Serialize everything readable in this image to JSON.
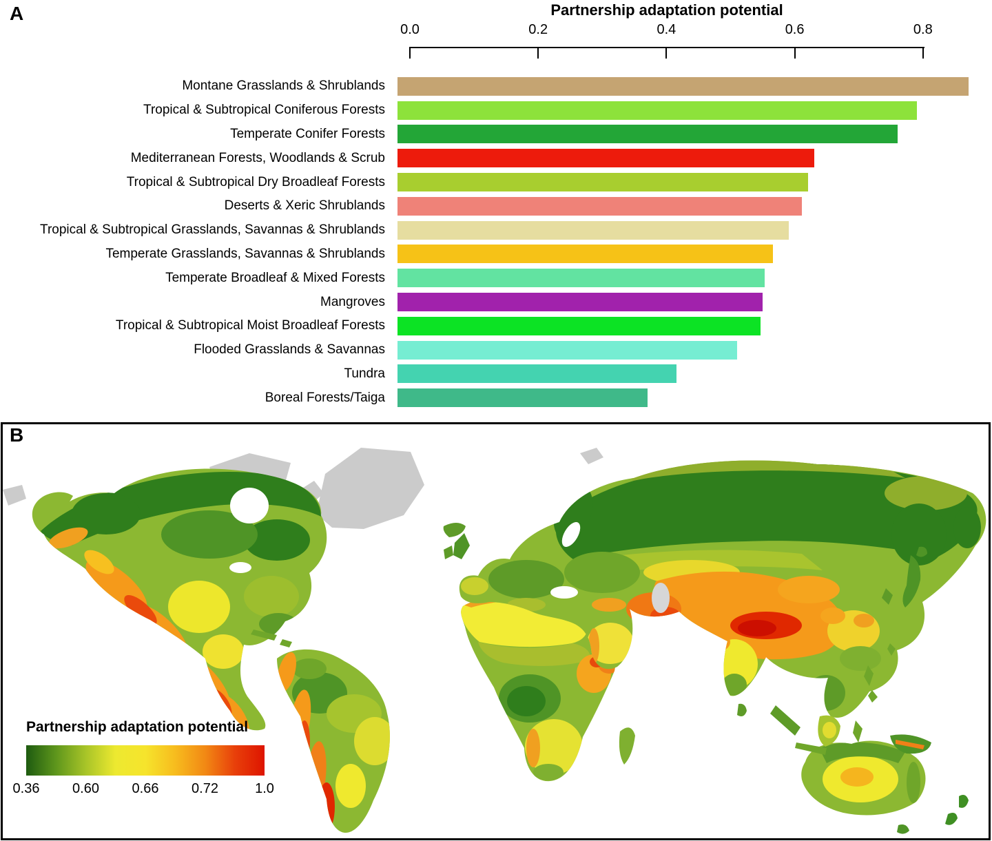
{
  "panels": {
    "a_label": "A",
    "b_label": "B"
  },
  "chart_data": [
    {
      "type": "bar",
      "orientation": "horizontal",
      "title": "Partnership adaptation potential",
      "axis_position": "top",
      "xlabel": "Partnership adaptation potential",
      "xlim": [
        0.0,
        0.9
      ],
      "xticks": [
        0,
        0.2,
        0.4,
        0.6,
        0.8
      ],
      "xtick_labels": [
        "0.0",
        "0.2",
        "0.4",
        "0.6",
        "0.8"
      ],
      "grid": false,
      "categories": [
        "Montane Grasslands & Shrublands",
        "Tropical & Subtropical Coniferous Forests",
        "Temperate Conifer Forests",
        "Mediterranean Forests, Woodlands & Scrub",
        "Tropical & Subtropical Dry Broadleaf Forests",
        "Deserts & Xeric Shrublands",
        "Tropical & Subtropical Grasslands, Savannas & Shrublands",
        "Temperate Grasslands, Savannas & Shrublands",
        "Temperate Broadleaf & Mixed Forests",
        "Mangroves",
        "Tropical & Subtropical Moist Broadleaf Forests",
        "Flooded Grasslands & Savannas",
        "Tundra",
        "Boreal Forests/Taiga"
      ],
      "values": [
        0.89,
        0.81,
        0.78,
        0.65,
        0.64,
        0.63,
        0.61,
        0.585,
        0.572,
        0.569,
        0.566,
        0.53,
        0.435,
        0.39
      ],
      "colors": [
        "#C5A472",
        "#8DE23B",
        "#23A637",
        "#ED1B0C",
        "#A8CE2F",
        "#EF8278",
        "#E6DDA0",
        "#F6C217",
        "#62E3A1",
        "#A122AC",
        "#0CE324",
        "#76EDD2",
        "#44D3B0",
        "#3FB989"
      ]
    },
    {
      "type": "heatmap",
      "subtype": "world-choropleth-map",
      "legend": {
        "title": "Partnership adaptation potential",
        "ticks": [
          "0.36",
          "0.60",
          "0.66",
          "0.72",
          "1.0"
        ],
        "range": [
          0.36,
          1.0
        ],
        "gradient": [
          "#1E5B10",
          "#5E961C",
          "#A8C428",
          "#EDE930",
          "#F6E42C",
          "#F7BC1E",
          "#F28914",
          "#E8400A",
          "#DE1400"
        ]
      },
      "no_data_color": "#CBCBCB"
    }
  ]
}
